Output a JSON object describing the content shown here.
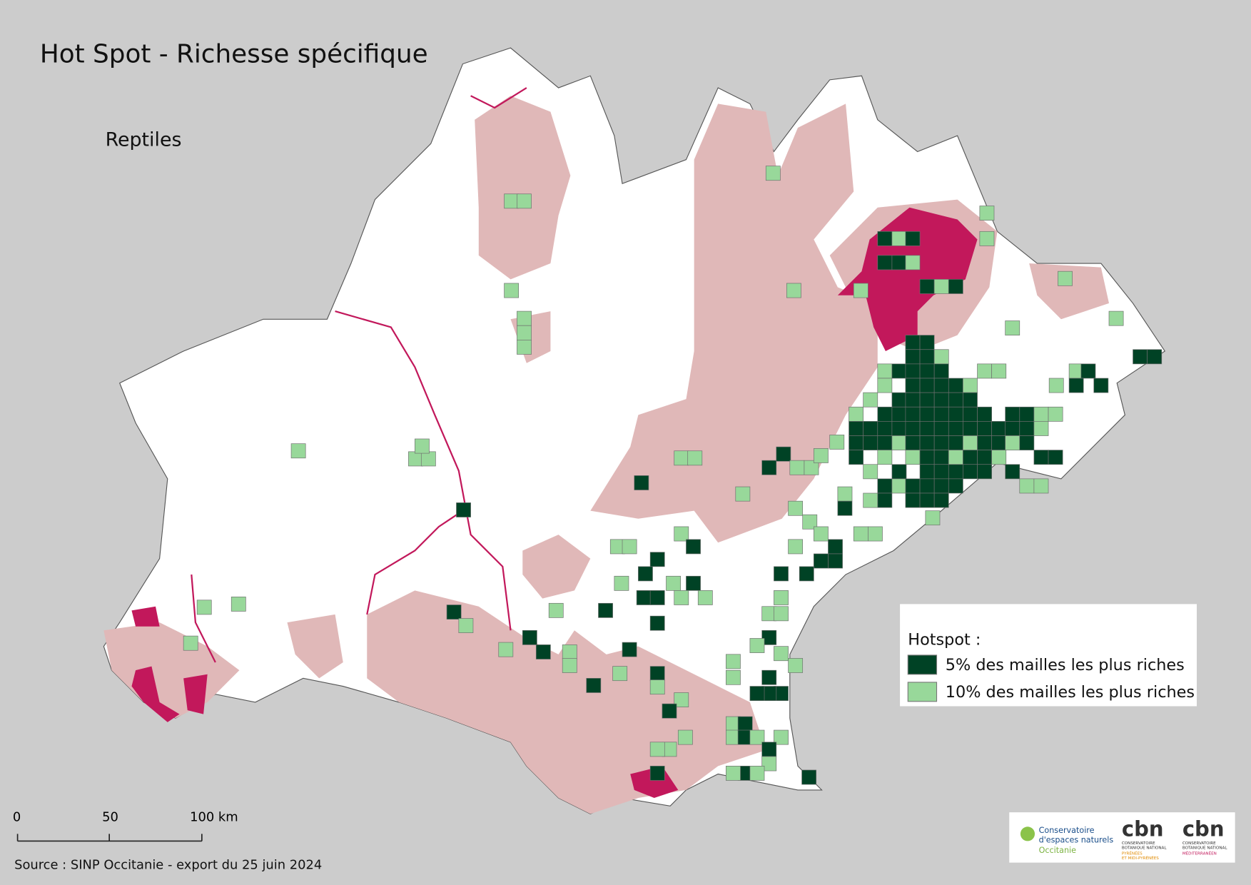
{
  "title": "Hot Spot - Richesse spécifique",
  "subtitle": "Reptiles",
  "legend": {
    "title": "Hotspot :",
    "items": [
      {
        "label": "5% des mailles les plus riches",
        "color": "#004225"
      },
      {
        "label": "10% des mailles les plus riches",
        "color": "#98d89a"
      }
    ]
  },
  "scale_bar": {
    "labels": [
      "0",
      "50",
      "100 km"
    ]
  },
  "source": "Source : SINP Occitanie - export du 25 juin 2024",
  "logos": {
    "cen": [
      "Conservatoire",
      "d'espaces naturels",
      "Occitanie"
    ],
    "cbn_pmp": [
      "cbn",
      "CONSERVATOIRE",
      "BOTANIQUE NATIONAL",
      "PYRÉNÉES",
      "ET MIDI-PYRÉNÉES"
    ],
    "cbn_med": [
      "cbn",
      "CONSERVATOIRE",
      "BOTANIQUE NATIONAL",
      "MÉDITERRANÉEN"
    ]
  }
}
